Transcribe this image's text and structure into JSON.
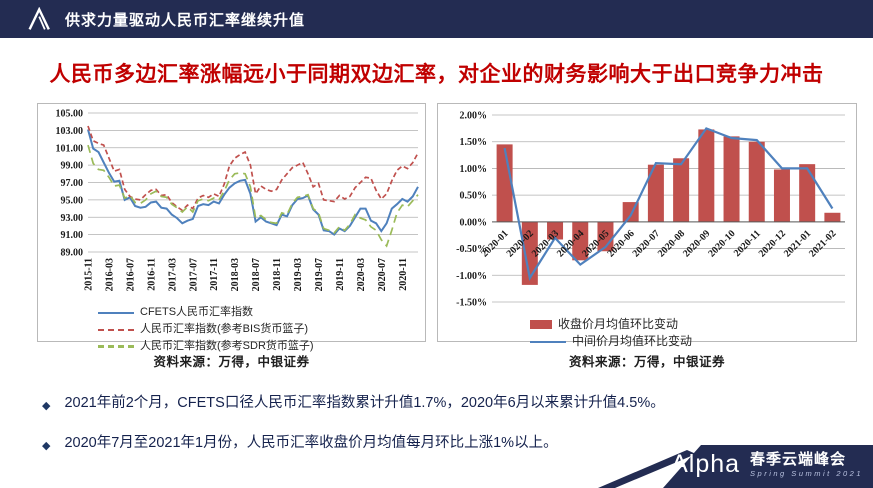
{
  "header": {
    "title": "供求力量驱动人民币汇率继续升值"
  },
  "slide_title": "人民币多边汇率涨幅远小于同期双边汇率，对企业的财务影响大于出口竞争力冲击",
  "bullet_marker": "◆",
  "bullets": [
    "2021年前2个月，CFETS口径人民币汇率指数累计升值1.7%，2020年6月以来累计升值4.5%。",
    "2020年7月至2021年1月份，人民币汇率收盘价月均值每月环比上涨1%以上。"
  ],
  "footer": {
    "logo_text": "Alpha",
    "event_cn": "春季云端峰会",
    "event_en": "Spring Summit 2021"
  },
  "colors": {
    "navy": "#232c52",
    "title_red": "#c00000",
    "bar_red": "#c0504d",
    "line_blue": "#4f81bd",
    "line_green": "#9bbb59",
    "gridline": "#b0b0b0"
  },
  "chart_data": [
    {
      "type": "line",
      "title": "",
      "x_start": "2015-11",
      "x_end": "2021-02",
      "x_tick_labels": [
        "2015-11",
        "2016-03",
        "2016-07",
        "2016-11",
        "2017-03",
        "2017-07",
        "2017-11",
        "2018-03",
        "2018-07",
        "2018-11",
        "2019-03",
        "2019-07",
        "2019-11",
        "2020-03",
        "2020-07",
        "2020-11"
      ],
      "x_tick_every_n_points": 4,
      "ylim": [
        89,
        105
      ],
      "ytick_step": 2,
      "ytick_labels": [
        "89.00",
        "91.00",
        "93.00",
        "95.00",
        "97.00",
        "99.00",
        "101.00",
        "103.00",
        "105.00"
      ],
      "grid": true,
      "legend_position": "bottom",
      "series": [
        {
          "name": "CFETS人民币汇率指数",
          "color": "#4f81bd",
          "style": "solid",
          "values": [
            103.1,
            100.9,
            100.5,
            99.3,
            98.1,
            97.1,
            97.2,
            95.0,
            95.3,
            94.3,
            94.1,
            94.2,
            94.7,
            94.8,
            94.1,
            94.0,
            93.3,
            92.9,
            92.3,
            92.6,
            92.8,
            94.3,
            94.5,
            94.4,
            94.8,
            94.6,
            95.6,
            96.4,
            96.9,
            97.2,
            97.3,
            95.7,
            92.5,
            93.0,
            92.5,
            92.3,
            92.1,
            93.3,
            93.1,
            94.4,
            95.1,
            95.2,
            95.5,
            93.9,
            93.3,
            91.5,
            91.4,
            91.0,
            91.7,
            91.4,
            92.0,
            93.0,
            94.0,
            94.0,
            92.6,
            92.3,
            91.4,
            92.3,
            94.0,
            94.5,
            95.1,
            94.8,
            95.4,
            96.5
          ]
        },
        {
          "name": "人民币汇率指数(参考BIS货币篮子)",
          "color": "#c0504d",
          "style": "dashed",
          "values": [
            103.5,
            101.8,
            101.5,
            101.3,
            99.8,
            98.3,
            98.5,
            96.2,
            95.4,
            95.1,
            95.0,
            95.6,
            96.1,
            96.2,
            95.5,
            95.6,
            94.7,
            94.2,
            93.8,
            94.4,
            94.0,
            95.2,
            95.5,
            95.3,
            95.7,
            95.4,
            96.8,
            98.9,
            99.8,
            100.2,
            100.5,
            99.0,
            95.7,
            96.6,
            96.2,
            96.0,
            96.2,
            97.3,
            98.0,
            98.7,
            99.0,
            99.3,
            98.0,
            96.5,
            96.9,
            95.0,
            94.9,
            94.8,
            95.5,
            95.1,
            95.4,
            96.4,
            97.0,
            97.6,
            97.5,
            96.1,
            95.1,
            95.7,
            97.2,
            98.4,
            98.9,
            98.6,
            99.3,
            100.4
          ]
        },
        {
          "name": "人民币汇率指数(参考SDR货币篮子)",
          "color": "#9bbb59",
          "style": "dashed-long",
          "values": [
            101.3,
            99.2,
            98.5,
            98.4,
            97.6,
            96.6,
            96.7,
            95.2,
            95.5,
            94.7,
            94.6,
            95.0,
            95.7,
            96.0,
            95.4,
            95.3,
            94.5,
            94.1,
            93.6,
            94.2,
            93.6,
            94.9,
            95.1,
            94.9,
            95.2,
            95.0,
            96.0,
            97.3,
            98.0,
            98.1,
            98.0,
            96.5,
            92.9,
            93.2,
            92.7,
            92.4,
            92.3,
            93.5,
            93.3,
            94.6,
            95.3,
            95.4,
            95.6,
            94.0,
            93.5,
            91.7,
            91.5,
            91.2,
            91.9,
            91.5,
            92.2,
            93.3,
            92.9,
            92.7,
            91.9,
            91.5,
            90.4,
            89.7,
            91.5,
            93.5,
            94.4,
            94.2,
            94.9,
            95.6
          ]
        }
      ],
      "source": "资料来源：万得，中银证券"
    },
    {
      "type": "bar",
      "title": "",
      "categories": [
        "2020-01",
        "2020-02",
        "2020-03",
        "2020-04",
        "2020-05",
        "2020-06",
        "2020-07",
        "2020-08",
        "2020-09",
        "2020-10",
        "2020-11",
        "2020-12",
        "2021-01",
        "2021-02"
      ],
      "ylim": [
        -1.5,
        2.0
      ],
      "ytick_step": 0.5,
      "ytick_labels": [
        "-1.50%",
        "-1.00%",
        "-0.50%",
        "0.00%",
        "0.50%",
        "1.00%",
        "1.50%",
        "2.00%"
      ],
      "grid": true,
      "legend_position": "bottom",
      "bar_series": {
        "name": "收盘价月均值环比变动",
        "color": "#c0504d",
        "values": [
          1.45,
          -1.18,
          -0.33,
          -0.72,
          -0.55,
          0.37,
          1.07,
          1.19,
          1.73,
          1.6,
          1.5,
          0.98,
          1.08,
          0.17
        ]
      },
      "line_series": {
        "name": "中间价月均值环比变动",
        "color": "#4f81bd",
        "values": [
          1.38,
          -1.05,
          -0.3,
          -0.8,
          -0.47,
          0.12,
          1.1,
          1.08,
          1.75,
          1.57,
          1.53,
          1.0,
          1.0,
          0.25
        ]
      },
      "source": "资料来源：万得，中银证券"
    }
  ]
}
